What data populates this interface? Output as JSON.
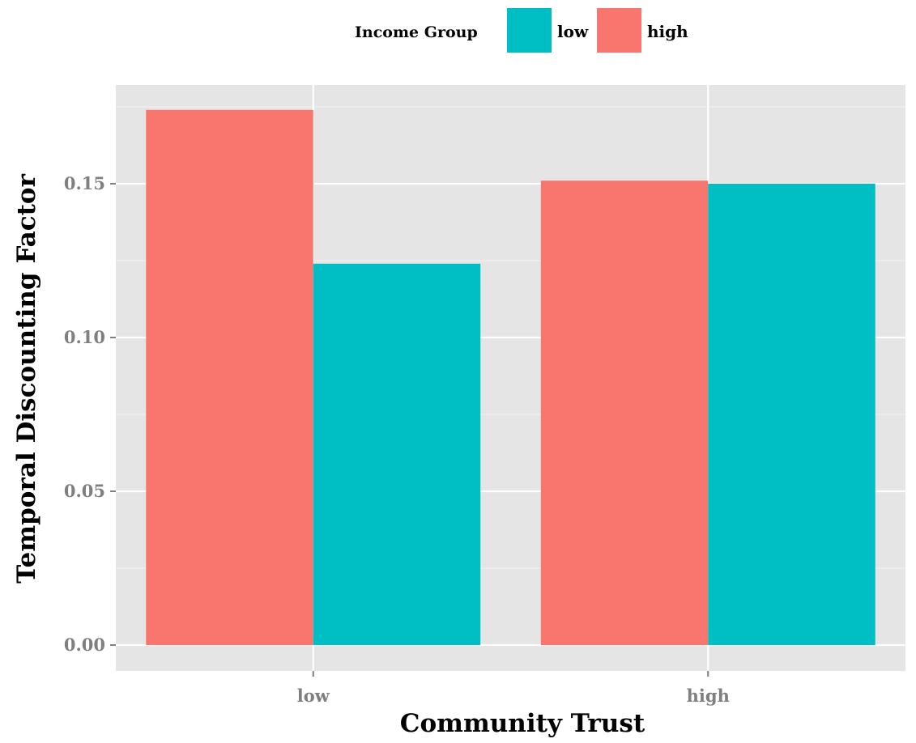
{
  "chart_data": {
    "type": "bar",
    "title": "",
    "xlabel": "Community Trust",
    "ylabel": "Temporal Discounting Factor",
    "categories": [
      "low",
      "high"
    ],
    "ylim": [
      0,
      0.1755
    ],
    "yticks": [
      0.0,
      0.05,
      0.1,
      0.15
    ],
    "ytick_labels": [
      "0.00",
      "0.05",
      "0.10",
      "0.15"
    ],
    "grid": true,
    "legend": {
      "title": "Income Group",
      "position": "top",
      "entries": [
        {
          "label": "low",
          "color": "#00BFC4"
        },
        {
          "label": "high",
          "color": "#F8766D"
        }
      ]
    },
    "series": [
      {
        "name": "high",
        "color": "#F8766D",
        "values": [
          0.174,
          0.151
        ]
      },
      {
        "name": "low",
        "color": "#00BFC4",
        "values": [
          0.124,
          0.15
        ]
      }
    ],
    "panel_background": "#E5E5E5",
    "grid_color": "#FFFFFF"
  }
}
